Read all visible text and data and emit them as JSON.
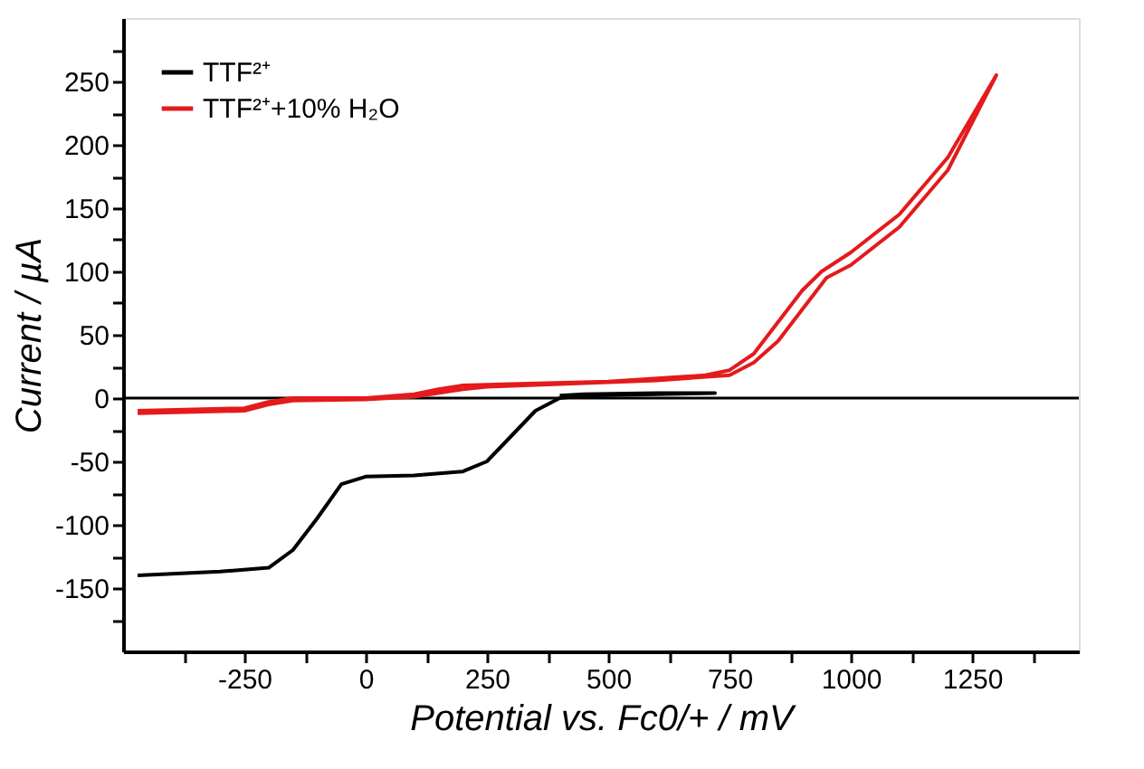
{
  "chart_data": {
    "type": "line",
    "xlabel": "Potential vs. Fc0/+ / mV",
    "ylabel": "Current / µA",
    "xlim": [
      -500,
      1470
    ],
    "ylim": [
      -200,
      300
    ],
    "xticks": [
      {
        "value": -375,
        "label": null
      },
      -250,
      {
        "value": -125,
        "label": null
      },
      0,
      {
        "value": 125,
        "label": null
      },
      250,
      {
        "value": 375,
        "label": null
      },
      500,
      {
        "value": 625,
        "label": null
      },
      750,
      {
        "value": 875,
        "label": null
      },
      1000,
      {
        "value": 1125,
        "label": null
      },
      1250,
      {
        "value": 1375,
        "label": null
      }
    ],
    "yticks": [
      {
        "value": -175,
        "label": null
      },
      -150,
      {
        "value": -125,
        "label": null
      },
      -100,
      {
        "value": -75,
        "label": null
      },
      -50,
      {
        "value": -25,
        "label": null
      },
      0,
      {
        "value": 25,
        "label": null
      },
      50,
      {
        "value": 75,
        "label": null
      },
      100,
      {
        "value": 125,
        "label": null
      },
      150,
      {
        "value": 175,
        "label": null
      },
      200,
      {
        "value": 225,
        "label": null
      },
      250,
      {
        "value": 275,
        "label": null
      }
    ],
    "grid": false,
    "legend": "top left",
    "marker": "none",
    "line_style": "solid",
    "ref_lines": [
      {
        "axis": "y",
        "value": 0,
        "color": "#000000"
      }
    ],
    "series": [
      {
        "name": "TTF²⁺",
        "color": "#000000",
        "x": [
          -470,
          -300,
          -200,
          -150,
          -100,
          -50,
          0,
          100,
          200,
          250,
          300,
          350,
          400,
          450,
          600,
          720,
          600,
          450,
          400
        ],
        "values": [
          -140,
          -137,
          -134,
          -120,
          -95,
          -68,
          -62,
          -61,
          -58,
          -50,
          -30,
          -10,
          0,
          2,
          3,
          4,
          4,
          3,
          2
        ]
      },
      {
        "name": "TTF²⁺+10% H₂O",
        "color": "#e41a1c",
        "x": [
          -470,
          -250,
          -200,
          -150,
          0,
          100,
          150,
          200,
          300,
          500,
          700,
          750,
          800,
          850,
          900,
          940,
          1000,
          1100,
          1200,
          1300,
          1200,
          1100,
          1000,
          950,
          900,
          850,
          800,
          750,
          600,
          400,
          250,
          200,
          100,
          0,
          -150,
          -200,
          -250,
          -470
        ],
        "values": [
          -10,
          -8,
          -3,
          0,
          0,
          3,
          7,
          10,
          11,
          13,
          18,
          22,
          35,
          60,
          85,
          100,
          115,
          145,
          190,
          255,
          180,
          135,
          105,
          95,
          70,
          45,
          28,
          18,
          14,
          11,
          9,
          7,
          1,
          -1,
          -2,
          -5,
          -10,
          -12
        ]
      }
    ]
  }
}
